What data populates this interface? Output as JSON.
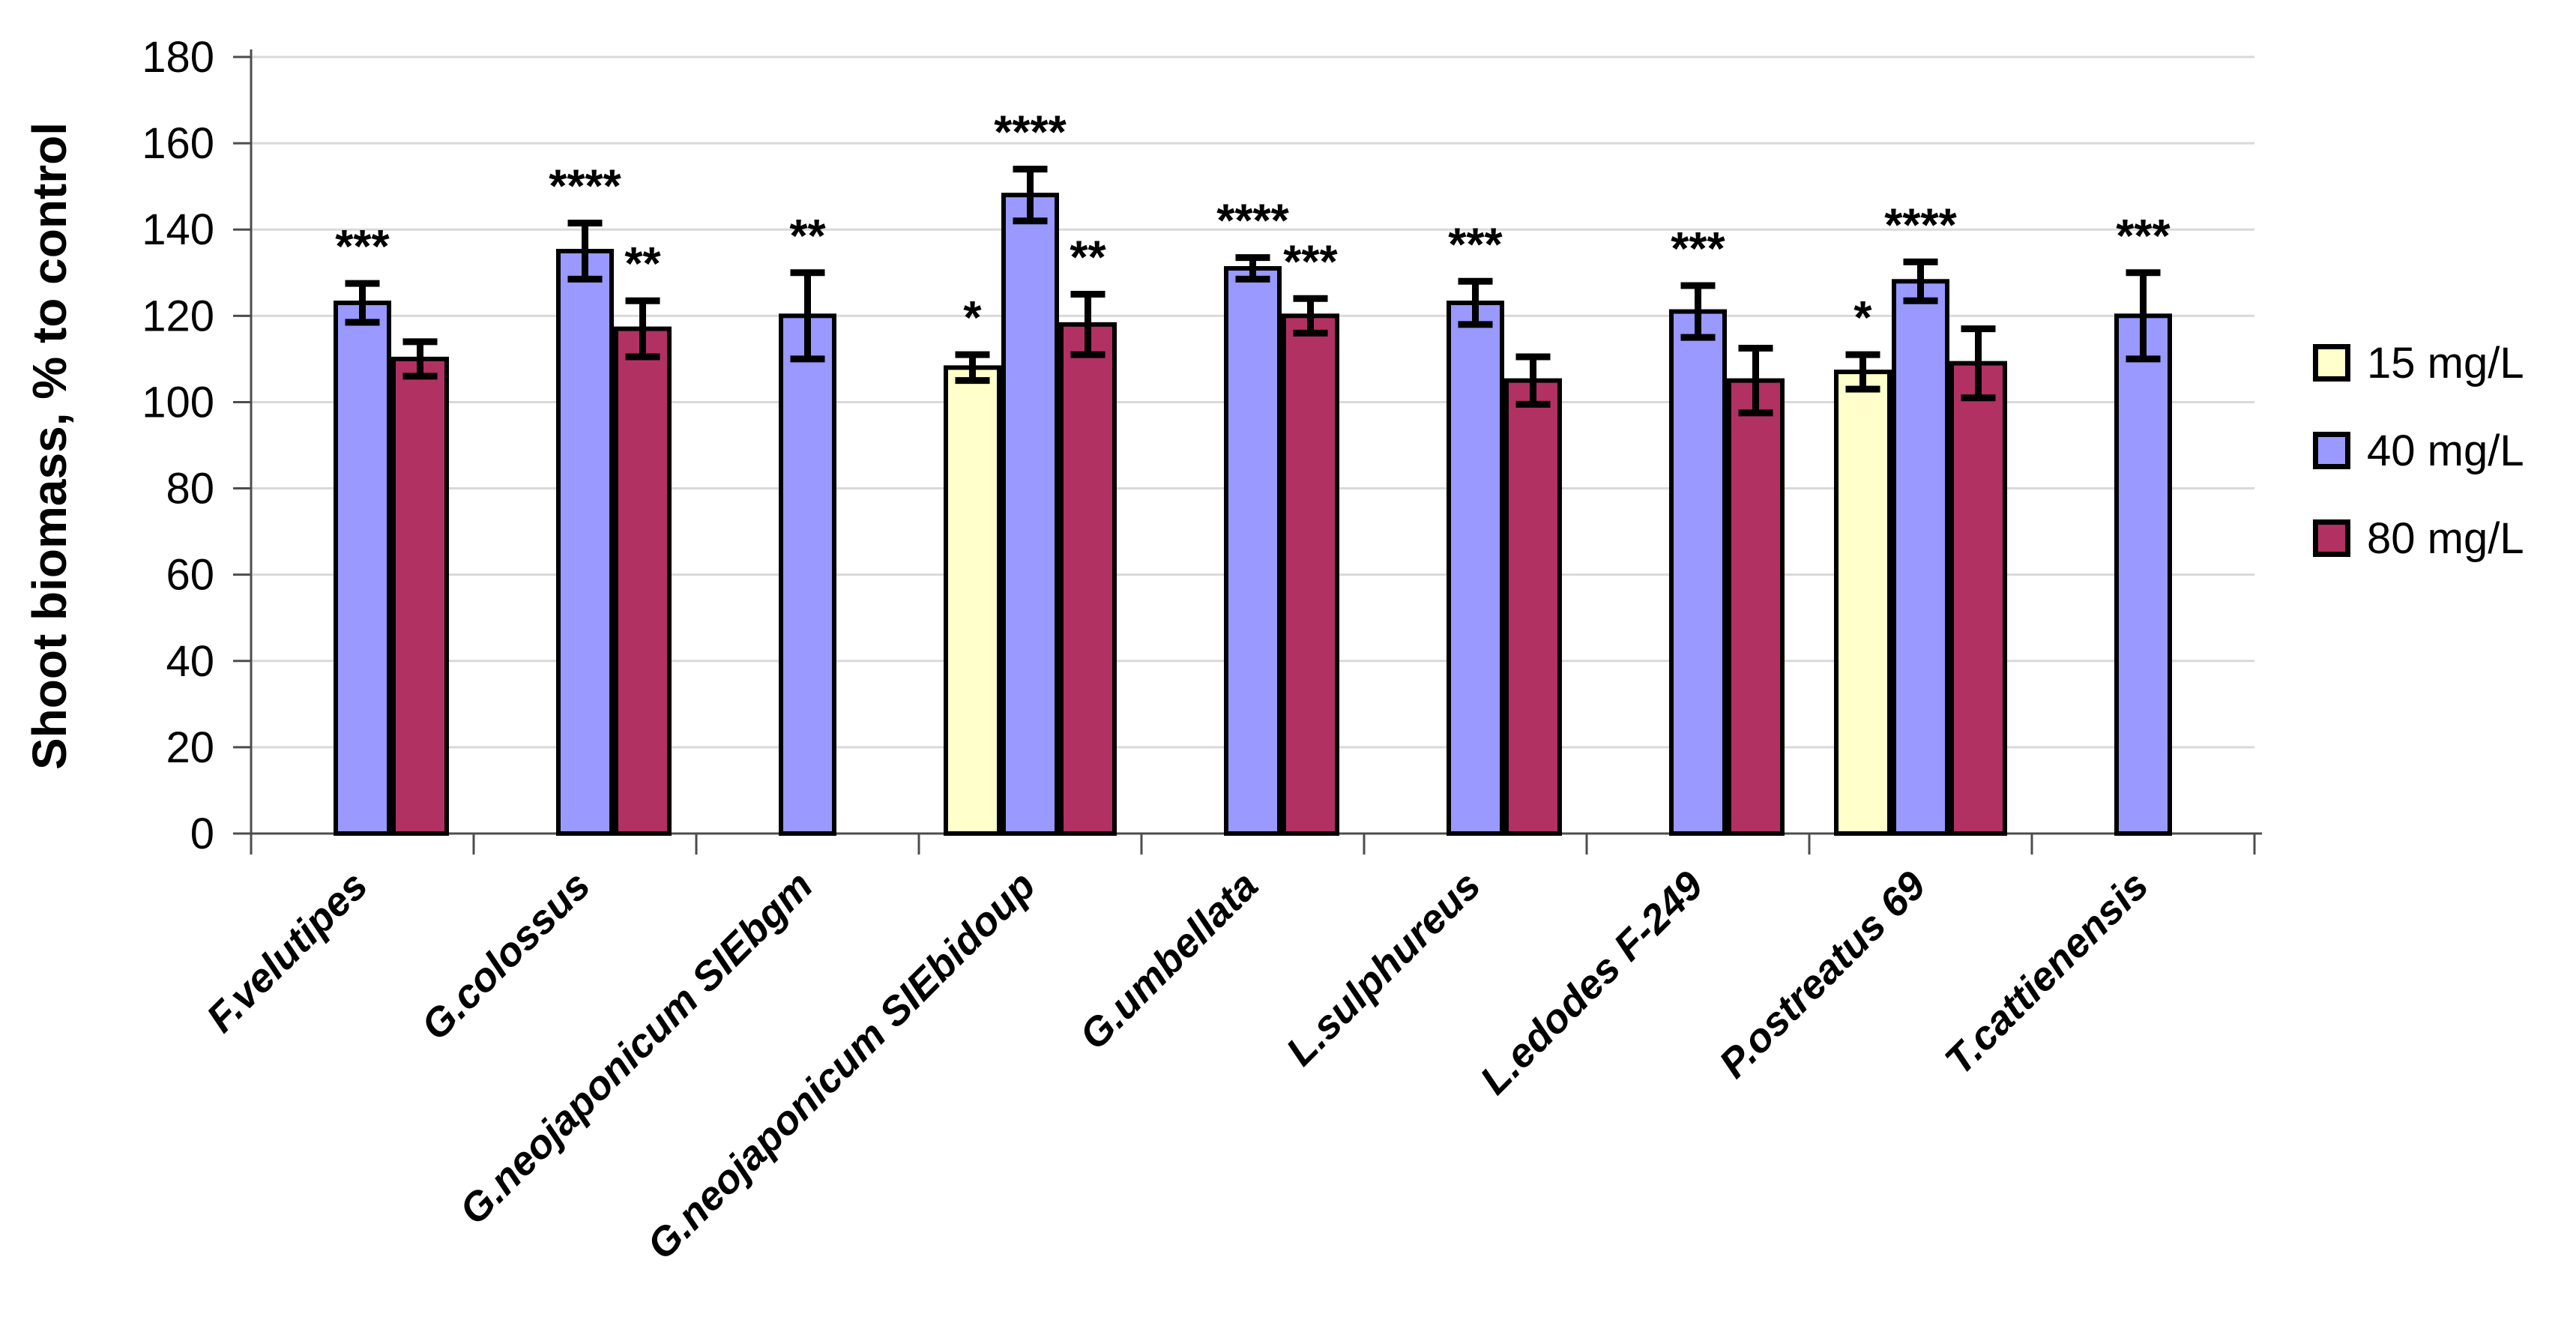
{
  "chart_data": {
    "type": "bar",
    "title": "",
    "xlabel": "",
    "ylabel": "Shoot biomass, % to control",
    "ylim": [
      0,
      180
    ],
    "yticks": [
      0,
      20,
      40,
      60,
      80,
      100,
      120,
      140,
      160,
      180
    ],
    "grid": true,
    "legend_position": "right",
    "categories": [
      "F.velutipes",
      "G.colossus",
      "G.neojaponicum SIEbgm",
      "G.neojaponicum SIEbidoup",
      "G.umbellata",
      "L.sulphureus",
      "L.edodes F-249",
      "P.ostreatus 69",
      "T.cattienensis"
    ],
    "series": [
      {
        "name": "15 mg/L",
        "color": "#FFFFCC",
        "values": [
          null,
          null,
          null,
          108,
          null,
          null,
          null,
          107,
          null
        ],
        "errors": [
          null,
          null,
          null,
          3,
          null,
          null,
          null,
          4,
          null
        ],
        "significance": [
          null,
          null,
          null,
          "*",
          null,
          null,
          null,
          "*",
          null
        ]
      },
      {
        "name": "40 mg/L",
        "color": "#9999FF",
        "values": [
          123,
          135,
          120,
          148,
          131,
          123,
          121,
          128,
          120
        ],
        "errors": [
          4.5,
          6.5,
          10,
          6,
          2.5,
          5,
          6,
          4.5,
          10
        ],
        "significance": [
          "***",
          "****",
          "**",
          "****",
          "****",
          "***",
          "***",
          "****",
          "***"
        ]
      },
      {
        "name": "80 mg/L",
        "color": "#B23163",
        "values": [
          110,
          117,
          null,
          118,
          120,
          105,
          105,
          109,
          null
        ],
        "errors": [
          4,
          6.5,
          null,
          7,
          4,
          5.5,
          7.5,
          8,
          null
        ],
        "significance": [
          null,
          "**",
          null,
          "**",
          "***",
          null,
          null,
          null,
          null
        ]
      }
    ]
  },
  "colors": {
    "background": "#FFFFFF",
    "gridline": "#D9D9D9",
    "axis": "#4D4D4D",
    "bar_border": "#000000",
    "error_bar": "#000000",
    "text": "#000000"
  }
}
